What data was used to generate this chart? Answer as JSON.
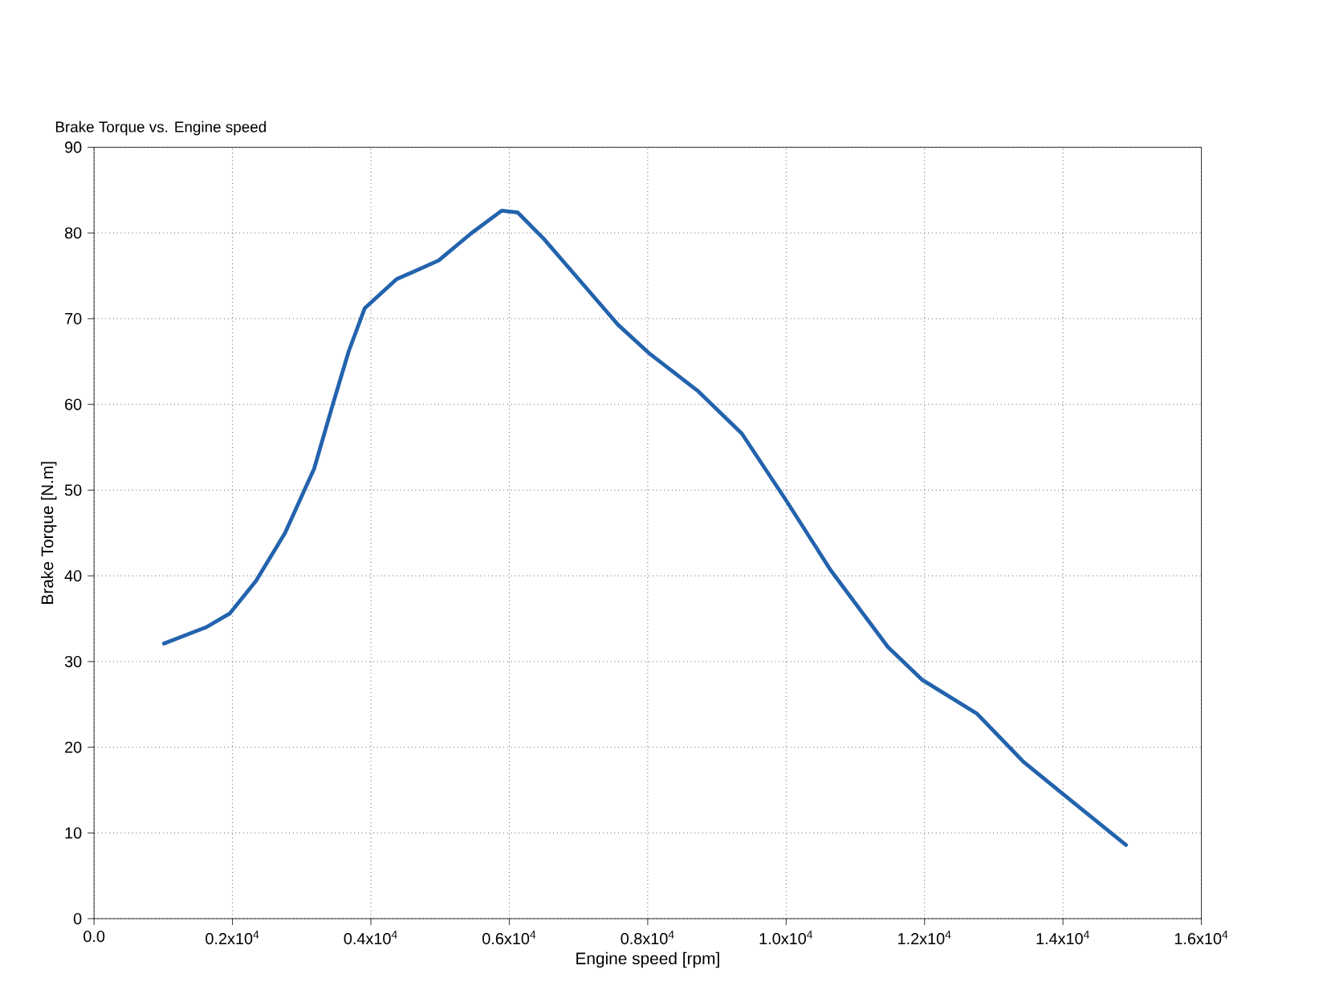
{
  "chart_data": {
    "type": "line",
    "title": "Brake Torque vs. Engine speed",
    "xlabel": "Engine speed  [rpm]",
    "ylabel": "Brake Torque  [N.m]",
    "xlim": [
      0,
      16000
    ],
    "ylim": [
      0,
      90
    ],
    "xticks": [
      {
        "value": 0,
        "label": "0.0"
      },
      {
        "value": 2000,
        "label": "0.2x10$^{4}$"
      },
      {
        "value": 4000,
        "label": "0.4x10$^{4}$"
      },
      {
        "value": 6000,
        "label": "0.6x10$^{4}$"
      },
      {
        "value": 8000,
        "label": "0.8x10$^{4}$"
      },
      {
        "value": 10000,
        "label": "1.0x10$^{4}$"
      },
      {
        "value": 12000,
        "label": "1.2x10$^{4}$"
      },
      {
        "value": 14000,
        "label": "1.4x10$^{4}$"
      },
      {
        "value": 16000,
        "label": "1.6x10$^{4}$"
      }
    ],
    "yticks": [
      0,
      10,
      20,
      30,
      40,
      50,
      60,
      70,
      80,
      90
    ],
    "grid": true,
    "marker": "none",
    "line_style": "solid",
    "series": [
      {
        "color": "#2363ad",
        "x": [
          1010,
          1620,
          1960,
          2340,
          2760,
          3180,
          3450,
          3680,
          3910,
          4370,
          4980,
          5440,
          5890,
          6120,
          6500,
          6960,
          7570,
          8030,
          8720,
          9360,
          10000,
          10640,
          11470,
          11960,
          12760,
          13430,
          13960,
          14910
        ],
        "values": [
          32.1,
          34.0,
          35.6,
          39.4,
          45.0,
          52.5,
          60.0,
          66.2,
          71.2,
          74.6,
          76.8,
          79.9,
          82.6,
          82.4,
          79.3,
          75.0,
          69.3,
          65.9,
          61.6,
          56.6,
          48.8,
          40.7,
          31.7,
          27.9,
          23.9,
          18.3,
          14.8,
          8.6
        ]
      }
    ]
  }
}
